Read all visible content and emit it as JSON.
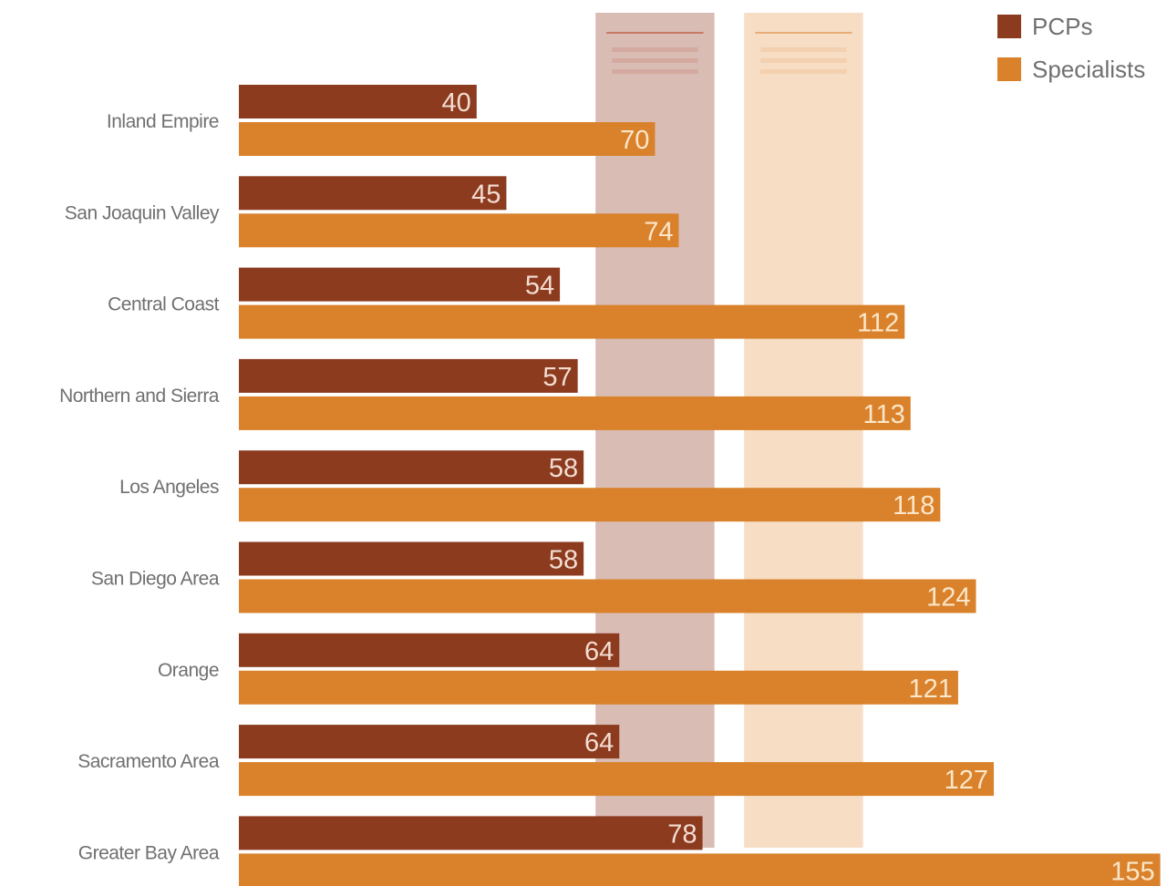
{
  "chart_data": {
    "type": "bar",
    "orientation": "horizontal",
    "title": "",
    "xlabel": "",
    "ylabel": "",
    "xlim": [
      0,
      160
    ],
    "categories": [
      "Inland Empire",
      "San Joaquin Valley",
      "Central Coast",
      "Northern and Sierra",
      "Los Angeles",
      "San Diego Area",
      "Orange",
      "Sacramento Area",
      "Greater Bay Area"
    ],
    "series": [
      {
        "name": "PCPs",
        "color": "#8c3b1f",
        "label_color": "#f3ddd2",
        "values": [
          40,
          45,
          54,
          57,
          58,
          58,
          64,
          64,
          78
        ]
      },
      {
        "name": "Specialists",
        "color": "#d9822b",
        "label_color": "#fbe6c9",
        "values": [
          70,
          74,
          112,
          113,
          118,
          124,
          121,
          127,
          155
        ]
      }
    ],
    "reference_bands": [
      {
        "color": "#d9bcb4",
        "header_color": "#c46a55",
        "min": 60,
        "max": 80
      },
      {
        "color": "#f6ddc4",
        "header_color": "#e6a264",
        "min": 85,
        "max": 105
      }
    ],
    "legend": {
      "position": "top-right",
      "entries": [
        "PCPs",
        "Specialists"
      ]
    },
    "grid": false
  }
}
